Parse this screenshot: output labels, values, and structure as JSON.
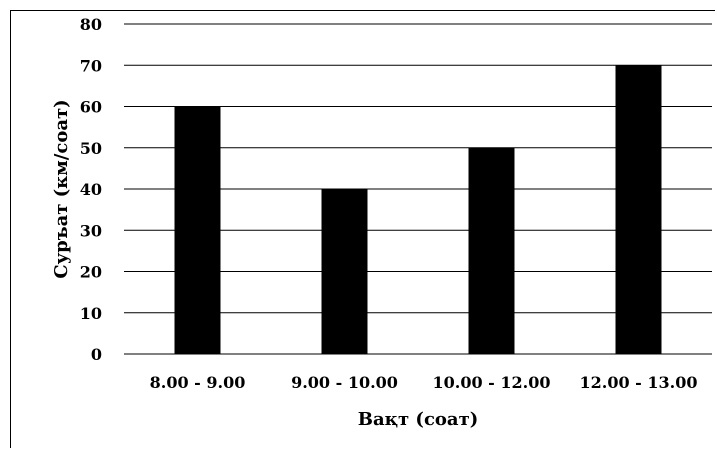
{
  "chart_data": {
    "type": "bar",
    "title": "",
    "xlabel": "Вақт (соат)",
    "ylabel": "Суръат (км/соат)",
    "categories": [
      "8.00 - 9.00",
      "9.00 - 10.00",
      "10.00 - 12.00",
      "12.00 - 13.00"
    ],
    "values": [
      60,
      40,
      50,
      70
    ],
    "ylim": [
      0,
      80
    ],
    "yticks": [
      0,
      10,
      20,
      30,
      40,
      50,
      60,
      70,
      80
    ],
    "grid": true,
    "bar_color": "#000000"
  }
}
